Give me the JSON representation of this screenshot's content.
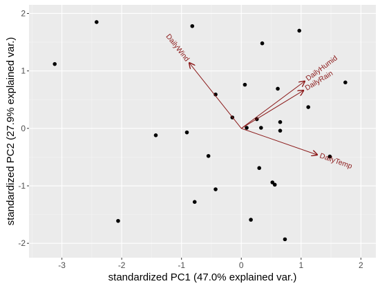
{
  "chart_data": {
    "type": "scatter",
    "title": "",
    "xlabel": "standardized PC1 (47.0% explained var.)",
    "ylabel": "standardized PC2 (27.9% explained var.)",
    "xlim": [
      -3.55,
      2.25
    ],
    "ylim": [
      -2.25,
      2.15
    ],
    "x_ticks": [
      -3,
      -2,
      -1,
      0,
      1,
      2
    ],
    "y_ticks": [
      -2,
      -1,
      0,
      1,
      2
    ],
    "grid": true,
    "points": [
      {
        "x": -3.12,
        "y": 1.12
      },
      {
        "x": -2.42,
        "y": 1.85
      },
      {
        "x": -2.06,
        "y": -1.61
      },
      {
        "x": -1.43,
        "y": -0.12
      },
      {
        "x": -0.91,
        "y": -0.07
      },
      {
        "x": -0.82,
        "y": 1.78
      },
      {
        "x": -0.78,
        "y": -1.28
      },
      {
        "x": -0.55,
        "y": -0.48
      },
      {
        "x": -0.43,
        "y": 0.59
      },
      {
        "x": -0.43,
        "y": -1.06
      },
      {
        "x": -0.15,
        "y": 0.19
      },
      {
        "x": 0.06,
        "y": 0.76
      },
      {
        "x": 0.09,
        "y": 0.01
      },
      {
        "x": 0.16,
        "y": -1.59
      },
      {
        "x": 0.26,
        "y": 0.16
      },
      {
        "x": 0.3,
        "y": -0.69
      },
      {
        "x": 0.33,
        "y": 0.01
      },
      {
        "x": 0.35,
        "y": 1.48
      },
      {
        "x": 0.52,
        "y": -0.94
      },
      {
        "x": 0.56,
        "y": -0.98
      },
      {
        "x": 0.61,
        "y": 0.69
      },
      {
        "x": 0.65,
        "y": 0.11
      },
      {
        "x": 0.65,
        "y": -0.04
      },
      {
        "x": 0.73,
        "y": -1.93
      },
      {
        "x": 0.97,
        "y": 1.7
      },
      {
        "x": 1.12,
        "y": 0.37
      },
      {
        "x": 1.48,
        "y": -0.49
      },
      {
        "x": 1.74,
        "y": 0.8
      }
    ],
    "loadings": [
      {
        "name": "DailyWind",
        "x": -0.87,
        "y": 1.14
      },
      {
        "name": "DailyHumid",
        "x": 1.06,
        "y": 0.82
      },
      {
        "name": "DailyRain",
        "x": 1.04,
        "y": 0.66
      },
      {
        "name": "DailyTemp",
        "x": 1.27,
        "y": -0.46
      }
    ],
    "colors": {
      "panel": "#ebebeb",
      "grid_major": "#ffffff",
      "point": "#000000",
      "arrow": "#8b1a1a"
    }
  }
}
